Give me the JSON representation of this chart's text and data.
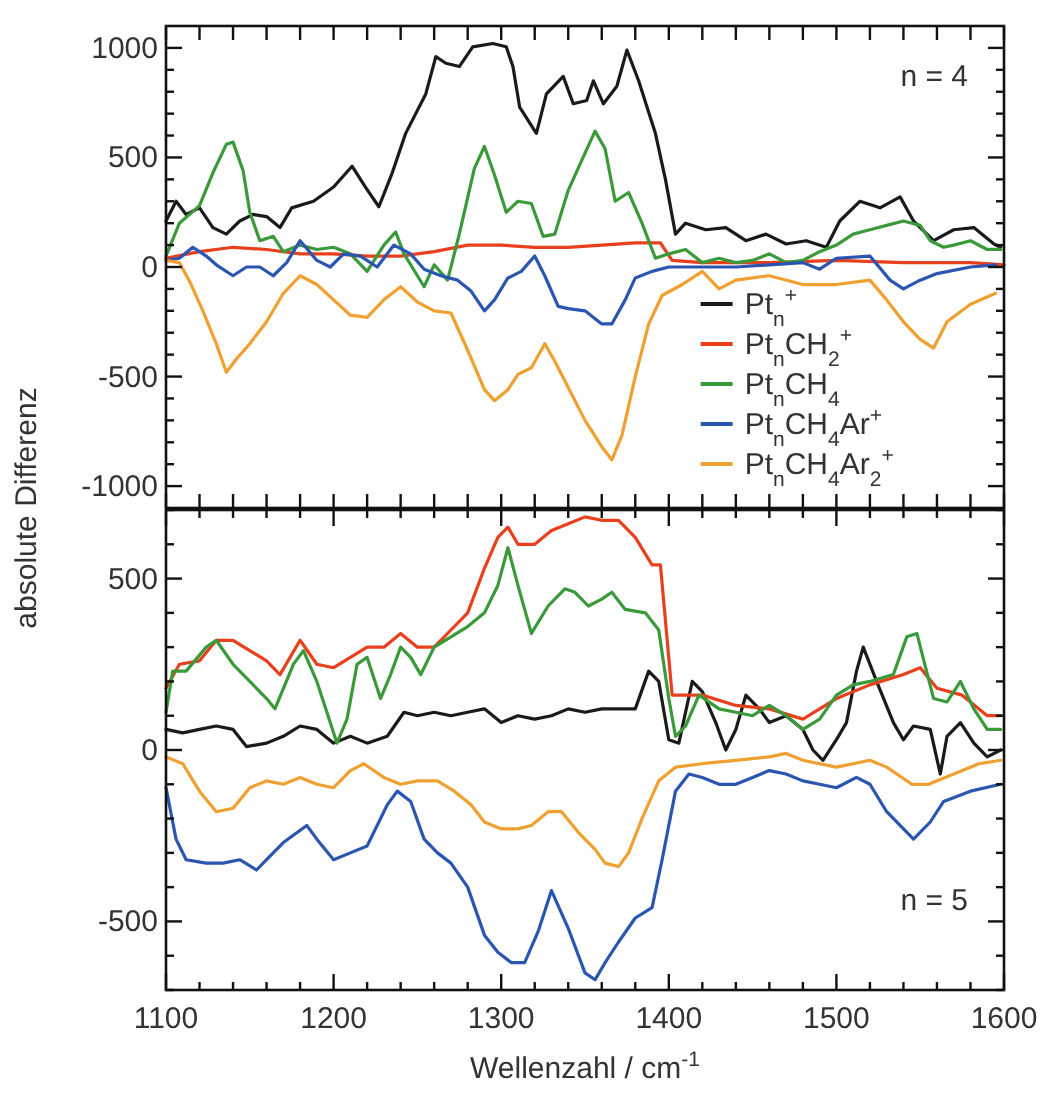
{
  "chart_data": [
    {
      "type": "line",
      "ylabel": "absolute Differenz",
      "annotations": [
        "n = 4"
      ],
      "legend": "bottom right",
      "tick_labels": "y",
      "grid": false,
      "line_style": "solid",
      "xlim": [
        1100,
        1600
      ],
      "xticks": [
        {
          "value": 1100,
          "label": null
        },
        {
          "value": 1120,
          "label": null
        },
        {
          "value": 1140,
          "label": null
        },
        {
          "value": 1160,
          "label": null
        },
        {
          "value": 1180,
          "label": null
        },
        {
          "value": 1200,
          "label": null
        },
        {
          "value": 1220,
          "label": null
        },
        {
          "value": 1240,
          "label": null
        },
        {
          "value": 1260,
          "label": null
        },
        {
          "value": 1280,
          "label": null
        },
        {
          "value": 1300,
          "label": null
        },
        {
          "value": 1320,
          "label": null
        },
        {
          "value": 1340,
          "label": null
        },
        {
          "value": 1360,
          "label": null
        },
        {
          "value": 1380,
          "label": null
        },
        {
          "value": 1400,
          "label": null
        },
        {
          "value": 1420,
          "label": null
        },
        {
          "value": 1440,
          "label": null
        },
        {
          "value": 1460,
          "label": null
        },
        {
          "value": 1480,
          "label": null
        },
        {
          "value": 1500,
          "label": null
        },
        {
          "value": 1520,
          "label": null
        },
        {
          "value": 1540,
          "label": null
        },
        {
          "value": 1560,
          "label": null
        },
        {
          "value": 1580,
          "label": null
        },
        {
          "value": 1600,
          "label": null
        }
      ],
      "ylim": [
        -1100,
        1100
      ],
      "yticks": [
        -1000,
        {
          "value": -900,
          "label": null
        },
        {
          "value": -800,
          "label": null
        },
        {
          "value": -700,
          "label": null
        },
        {
          "value": -600,
          "label": null
        },
        -500,
        {
          "value": -400,
          "label": null
        },
        {
          "value": -300,
          "label": null
        },
        {
          "value": -200,
          "label": null
        },
        {
          "value": -100,
          "label": null
        },
        0,
        {
          "value": 100,
          "label": null
        },
        {
          "value": 200,
          "label": null
        },
        {
          "value": 300,
          "label": null
        },
        {
          "value": 400,
          "label": null
        },
        500,
        {
          "value": 600,
          "label": null
        },
        {
          "value": 700,
          "label": null
        },
        {
          "value": 800,
          "label": null
        },
        {
          "value": 900,
          "label": null
        },
        1000
      ],
      "series": [
        {
          "name": "Pt$_{n}$$^{+}$",
          "color": "#1a1a1a",
          "x": [
            1100,
            1106,
            1112,
            1120,
            1128,
            1136,
            1144,
            1152,
            1160,
            1168,
            1175,
            1188,
            1200,
            1211,
            1219,
            1227,
            1235,
            1243,
            1255,
            1261,
            1267,
            1275,
            1283,
            1295,
            1303,
            1307,
            1311,
            1321,
            1327,
            1337,
            1343,
            1351,
            1355,
            1361,
            1369,
            1375,
            1382,
            1392,
            1398,
            1404,
            1410,
            1422,
            1434,
            1446,
            1458,
            1470,
            1482,
            1494,
            1502,
            1514,
            1526,
            1538,
            1546,
            1558,
            1570,
            1582,
            1594,
            1598
          ],
          "values": [
            210,
            300,
            240,
            270,
            180,
            150,
            210,
            240,
            230,
            180,
            270,
            300,
            365,
            460,
            365,
            275,
            430,
            610,
            790,
            960,
            930,
            915,
            1005,
            1020,
            1005,
            915,
            730,
            610,
            790,
            870,
            745,
            760,
            850,
            745,
            825,
            990,
            850,
            610,
            400,
            150,
            200,
            170,
            180,
            120,
            150,
            105,
            120,
            90,
            210,
            300,
            270,
            320,
            210,
            120,
            170,
            180,
            105,
            90
          ]
        },
        {
          "name": "Pt$_{n}$CH$_{2}$$^{+}$",
          "color": "#e8401c",
          "x": [
            1100,
            1120,
            1140,
            1160,
            1180,
            1200,
            1220,
            1240,
            1260,
            1280,
            1300,
            1320,
            1340,
            1360,
            1380,
            1395,
            1402,
            1420,
            1460,
            1500,
            1540,
            1580,
            1600
          ],
          "values": [
            40,
            70,
            90,
            80,
            60,
            60,
            50,
            50,
            70,
            100,
            100,
            90,
            90,
            100,
            110,
            110,
            30,
            20,
            20,
            30,
            20,
            20,
            10
          ]
        },
        {
          "name": "Pt$_{n}$CH$_{4}$",
          "color": "#3a9a3a",
          "x": [
            1100,
            1108,
            1120,
            1128,
            1136,
            1140,
            1146,
            1150,
            1156,
            1164,
            1170,
            1180,
            1190,
            1200,
            1210,
            1220,
            1230,
            1237,
            1242,
            1250,
            1254,
            1260,
            1268,
            1275,
            1284,
            1290,
            1296,
            1303,
            1310,
            1318,
            1325,
            1332,
            1340,
            1350,
            1356,
            1362,
            1368,
            1376,
            1384,
            1392,
            1400,
            1410,
            1420,
            1430,
            1440,
            1450,
            1460,
            1470,
            1480,
            1490,
            1500,
            1510,
            1520,
            1530,
            1540,
            1550,
            1556,
            1564,
            1570,
            1580,
            1590,
            1598
          ],
          "values": [
            50,
            200,
            280,
            430,
            560,
            570,
            440,
            250,
            120,
            140,
            70,
            100,
            80,
            90,
            60,
            -20,
            100,
            160,
            60,
            -40,
            -90,
            10,
            -60,
            150,
            450,
            550,
            420,
            250,
            300,
            290,
            140,
            150,
            350,
            520,
            620,
            540,
            300,
            340,
            200,
            40,
            60,
            80,
            20,
            40,
            20,
            30,
            60,
            20,
            30,
            70,
            100,
            150,
            170,
            190,
            210,
            190,
            120,
            90,
            100,
            120,
            80,
            80
          ]
        },
        {
          "name": "Pt$_{n}$CH$_{4}$Ar$^{+}$",
          "color": "#2a55b0",
          "x": [
            1100,
            1108,
            1116,
            1124,
            1130,
            1140,
            1148,
            1156,
            1164,
            1172,
            1180,
            1190,
            1198,
            1206,
            1216,
            1226,
            1236,
            1246,
            1254,
            1264,
            1274,
            1282,
            1290,
            1296,
            1304,
            1312,
            1320,
            1326,
            1334,
            1340,
            1350,
            1360,
            1366,
            1374,
            1380,
            1390,
            1400,
            1420,
            1440,
            1460,
            1480,
            1490,
            1500,
            1520,
            1532,
            1540,
            1550,
            1560,
            1580,
            1595
          ],
          "values": [
            30,
            40,
            90,
            50,
            10,
            -40,
            0,
            0,
            -40,
            20,
            120,
            30,
            0,
            60,
            50,
            0,
            100,
            60,
            -10,
            -40,
            -60,
            -110,
            -200,
            -150,
            -50,
            -20,
            50,
            -40,
            -180,
            -190,
            -200,
            -260,
            -260,
            -150,
            -50,
            -20,
            0,
            0,
            0,
            10,
            20,
            -10,
            40,
            50,
            -60,
            -100,
            -60,
            -30,
            0,
            10
          ]
        },
        {
          "name": "Pt$_{n}$CH$_{4}$Ar$_{2}$$^{+}$",
          "color": "#f0a030",
          "x": [
            1100,
            1108,
            1115,
            1122,
            1130,
            1136,
            1142,
            1150,
            1160,
            1170,
            1180,
            1190,
            1200,
            1210,
            1220,
            1230,
            1240,
            1250,
            1260,
            1270,
            1280,
            1290,
            1296,
            1304,
            1310,
            1318,
            1326,
            1332,
            1340,
            1350,
            1360,
            1366,
            1372,
            1380,
            1388,
            1396,
            1408,
            1420,
            1430,
            1440,
            1460,
            1480,
            1500,
            1520,
            1530,
            1540,
            1550,
            1558,
            1566,
            1580,
            1595
          ],
          "values": [
            30,
            20,
            -80,
            -200,
            -350,
            -480,
            -420,
            -350,
            -250,
            -120,
            -40,
            -80,
            -150,
            -220,
            -230,
            -150,
            -90,
            -160,
            -200,
            -210,
            -380,
            -560,
            -610,
            -560,
            -490,
            -460,
            -350,
            -430,
            -550,
            -700,
            -820,
            -880,
            -770,
            -500,
            -260,
            -130,
            -80,
            -20,
            -100,
            -60,
            -40,
            -80,
            -80,
            -60,
            -150,
            -250,
            -330,
            -370,
            -250,
            -170,
            -120
          ]
        }
      ]
    },
    {
      "type": "line",
      "xlabel": "Wellenzahl / cm$^{-1}$",
      "annotations": [
        "n = 5"
      ],
      "grid": false,
      "line_style": "solid",
      "xlim": [
        1100,
        1600
      ],
      "xticks": [
        1100,
        {
          "value": 1120,
          "label": null
        },
        {
          "value": 1140,
          "label": null
        },
        {
          "value": 1160,
          "label": null
        },
        {
          "value": 1180,
          "label": null
        },
        1200,
        {
          "value": 1220,
          "label": null
        },
        {
          "value": 1240,
          "label": null
        },
        {
          "value": 1260,
          "label": null
        },
        {
          "value": 1280,
          "label": null
        },
        1300,
        {
          "value": 1320,
          "label": null
        },
        {
          "value": 1340,
          "label": null
        },
        {
          "value": 1360,
          "label": null
        },
        {
          "value": 1380,
          "label": null
        },
        1400,
        {
          "value": 1420,
          "label": null
        },
        {
          "value": 1440,
          "label": null
        },
        {
          "value": 1460,
          "label": null
        },
        {
          "value": 1480,
          "label": null
        },
        1500,
        {
          "value": 1520,
          "label": null
        },
        {
          "value": 1540,
          "label": null
        },
        {
          "value": 1560,
          "label": null
        },
        {
          "value": 1580,
          "label": null
        },
        1600
      ],
      "ylim": [
        -700,
        700
      ],
      "yticks": [
        {
          "value": -700,
          "label": null
        },
        {
          "value": -600,
          "label": null
        },
        -500,
        {
          "value": -400,
          "label": null
        },
        {
          "value": -300,
          "label": null
        },
        {
          "value": -200,
          "label": null
        },
        {
          "value": -100,
          "label": null
        },
        0,
        {
          "value": 100,
          "label": null
        },
        {
          "value": 200,
          "label": null
        },
        {
          "value": 300,
          "label": null
        },
        {
          "value": 400,
          "label": null
        },
        500,
        {
          "value": 600,
          "label": null
        },
        {
          "value": 700,
          "label": null
        }
      ],
      "series": [
        {
          "color": "#1a1a1a",
          "x": [
            1100,
            1110,
            1120,
            1130,
            1140,
            1148,
            1160,
            1170,
            1180,
            1190,
            1200,
            1210,
            1220,
            1232,
            1242,
            1250,
            1260,
            1270,
            1280,
            1290,
            1300,
            1310,
            1320,
            1330,
            1340,
            1350,
            1360,
            1380,
            1388,
            1394,
            1400,
            1406,
            1414,
            1420,
            1428,
            1434,
            1440,
            1446,
            1454,
            1460,
            1470,
            1480,
            1486,
            1492,
            1500,
            1506,
            1512,
            1516,
            1524,
            1534,
            1540,
            1546,
            1556,
            1562,
            1566,
            1574,
            1582,
            1590,
            1598
          ],
          "values": [
            60,
            50,
            60,
            70,
            60,
            10,
            20,
            40,
            70,
            60,
            20,
            40,
            20,
            40,
            110,
            100,
            110,
            100,
            110,
            120,
            80,
            100,
            90,
            100,
            120,
            110,
            120,
            120,
            230,
            200,
            30,
            20,
            200,
            170,
            80,
            0,
            60,
            160,
            120,
            80,
            100,
            60,
            0,
            -30,
            30,
            80,
            230,
            300,
            200,
            80,
            30,
            70,
            60,
            -70,
            40,
            80,
            20,
            -20,
            0
          ]
        },
        {
          "color": "#e8401c",
          "x": [
            1100,
            1108,
            1120,
            1130,
            1140,
            1150,
            1160,
            1168,
            1180,
            1190,
            1200,
            1210,
            1220,
            1230,
            1240,
            1250,
            1260,
            1270,
            1280,
            1290,
            1298,
            1304,
            1310,
            1320,
            1330,
            1340,
            1350,
            1360,
            1370,
            1380,
            1390,
            1395,
            1402,
            1420,
            1440,
            1460,
            1480,
            1500,
            1520,
            1540,
            1550,
            1560,
            1575,
            1590,
            1598
          ],
          "values": [
            180,
            250,
            260,
            320,
            320,
            290,
            260,
            220,
            320,
            250,
            240,
            270,
            300,
            300,
            340,
            300,
            300,
            350,
            400,
            530,
            620,
            650,
            600,
            600,
            640,
            660,
            680,
            670,
            670,
            620,
            540,
            540,
            160,
            160,
            130,
            120,
            90,
            150,
            190,
            220,
            240,
            180,
            160,
            100,
            100
          ]
        },
        {
          "color": "#3a9a3a",
          "x": [
            1100,
            1104,
            1112,
            1124,
            1130,
            1140,
            1150,
            1160,
            1165,
            1176,
            1182,
            1190,
            1198,
            1202,
            1208,
            1214,
            1220,
            1228,
            1234,
            1240,
            1246,
            1252,
            1260,
            1270,
            1280,
            1290,
            1298,
            1304,
            1310,
            1318,
            1328,
            1338,
            1344,
            1352,
            1360,
            1366,
            1374,
            1386,
            1394,
            1400,
            1404,
            1410,
            1418,
            1430,
            1440,
            1450,
            1460,
            1470,
            1480,
            1490,
            1500,
            1510,
            1520,
            1534,
            1542,
            1548,
            1558,
            1566,
            1574,
            1582,
            1590,
            1598
          ],
          "values": [
            110,
            230,
            230,
            300,
            320,
            250,
            200,
            150,
            120,
            250,
            290,
            200,
            80,
            20,
            90,
            250,
            270,
            150,
            220,
            300,
            270,
            220,
            300,
            330,
            360,
            400,
            480,
            590,
            480,
            340,
            420,
            470,
            460,
            420,
            440,
            460,
            410,
            400,
            350,
            150,
            40,
            70,
            160,
            120,
            110,
            100,
            130,
            100,
            60,
            90,
            160,
            190,
            200,
            220,
            330,
            340,
            150,
            140,
            200,
            120,
            60,
            60
          ]
        },
        {
          "color": "#2a55b0",
          "x": [
            1100,
            1106,
            1112,
            1124,
            1134,
            1144,
            1154,
            1160,
            1170,
            1184,
            1190,
            1200,
            1210,
            1220,
            1232,
            1238,
            1246,
            1254,
            1262,
            1270,
            1280,
            1290,
            1298,
            1306,
            1314,
            1322,
            1330,
            1340,
            1350,
            1356,
            1362,
            1370,
            1380,
            1390,
            1396,
            1404,
            1412,
            1420,
            1430,
            1440,
            1450,
            1460,
            1470,
            1480,
            1490,
            1500,
            1512,
            1520,
            1530,
            1546,
            1556,
            1564,
            1580,
            1598
          ],
          "values": [
            -110,
            -260,
            -320,
            -330,
            -330,
            -320,
            -350,
            -320,
            -270,
            -220,
            -260,
            -320,
            -300,
            -280,
            -160,
            -120,
            -150,
            -260,
            -300,
            -330,
            -400,
            -540,
            -590,
            -620,
            -620,
            -530,
            -410,
            -520,
            -650,
            -670,
            -620,
            -560,
            -490,
            -460,
            -320,
            -120,
            -70,
            -80,
            -100,
            -100,
            -80,
            -60,
            -70,
            -90,
            -100,
            -110,
            -80,
            -100,
            -180,
            -260,
            -210,
            -150,
            -120,
            -100
          ]
        },
        {
          "color": "#f0a030",
          "x": [
            1100,
            1110,
            1120,
            1130,
            1140,
            1150,
            1160,
            1170,
            1180,
            1190,
            1200,
            1210,
            1218,
            1230,
            1240,
            1250,
            1262,
            1272,
            1282,
            1290,
            1300,
            1310,
            1318,
            1328,
            1336,
            1346,
            1356,
            1362,
            1370,
            1376,
            1384,
            1394,
            1404,
            1420,
            1440,
            1460,
            1470,
            1480,
            1500,
            1520,
            1530,
            1545,
            1555,
            1570,
            1585,
            1598
          ],
          "values": [
            -20,
            -40,
            -120,
            -180,
            -170,
            -110,
            -90,
            -100,
            -80,
            -100,
            -110,
            -60,
            -40,
            -80,
            -100,
            -90,
            -90,
            -120,
            -160,
            -210,
            -230,
            -230,
            -220,
            -180,
            -180,
            -240,
            -290,
            -330,
            -340,
            -300,
            -200,
            -90,
            -50,
            -40,
            -30,
            -20,
            -10,
            -30,
            -50,
            -30,
            -50,
            -100,
            -100,
            -70,
            -40,
            -30
          ]
        }
      ]
    }
  ]
}
